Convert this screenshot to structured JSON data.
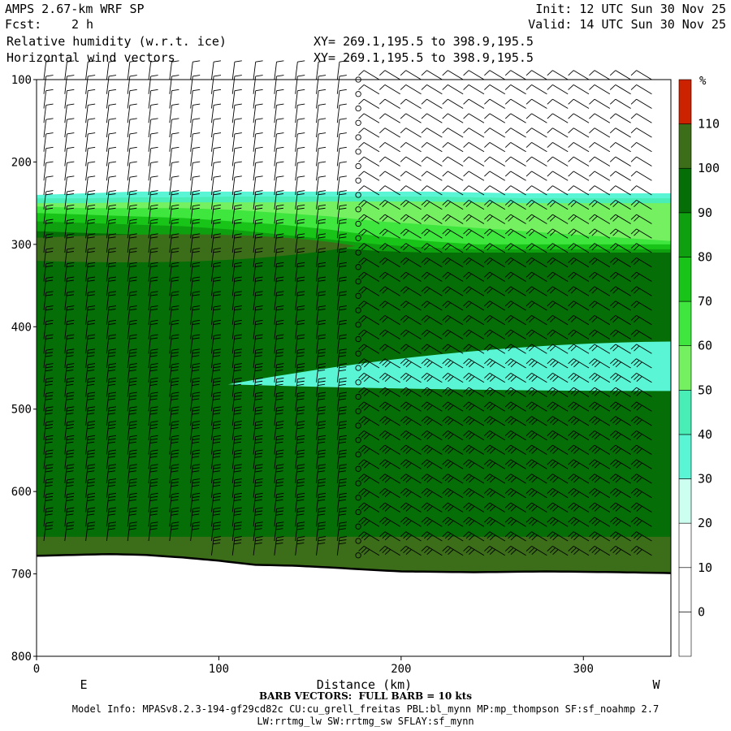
{
  "header": {
    "model": "AMPS 2.67-km WRF SP",
    "init": "Init: 12 UTC Sun 30 Nov 25",
    "fcst_label": "Fcst:",
    "fcst_value": "2 h",
    "valid": "Valid: 14 UTC Sun 30 Nov 25",
    "field1": "Relative humidity (w.r.t. ice)",
    "field2": "Horizontal wind vectors",
    "xy1": "XY= 269.1,195.5 to 398.9,195.5",
    "xy2": "XY= 269.1,195.5 to 398.9,195.5"
  },
  "footer": {
    "barb_note": "BARB VECTORS:  FULL BARB = 10 kts",
    "model_info": "Model Info: MPASv8.2.3-194-gf29cd82c CU:cu_grell_freitas PBL:bl_mynn MP:mp_thompson SF:sf_noahmp 2.7",
    "model_info2": "LW:rrtmg_lw SW:rrtmg_sw SFLAY:sf_mynn"
  },
  "chart_data": {
    "type": "heatmap",
    "title": "Relative humidity (w.r.t. ice)",
    "xlabel": "Distance (km)",
    "ylabel": "",
    "x_ticks": [
      0,
      100,
      200,
      300
    ],
    "y_ticks": [
      100,
      200,
      300,
      400,
      500,
      600,
      700,
      800
    ],
    "xlim": [
      0,
      348
    ],
    "ylim": [
      800,
      100
    ],
    "y_orientation": "pressure decreasing upward",
    "x_end_labels": {
      "left": "E",
      "right": "W"
    },
    "colorbar": {
      "unit": "%",
      "levels": [
        0,
        10,
        20,
        30,
        40,
        50,
        60,
        70,
        80,
        90,
        100,
        110
      ],
      "colors": [
        "#ffffff",
        "#ffffff",
        "#ffffff",
        "#cdfff0",
        "#5af5d5",
        "#48eeb5",
        "#74f060",
        "#3ee63e",
        "#19c419",
        "#0ea00e",
        "#066e06",
        "#3c6d18",
        "#cc2200"
      ]
    },
    "layers": [
      {
        "level": 30,
        "top": [
          240,
          238,
          236,
          236,
          236,
          236,
          236,
          236,
          236,
          237,
          238,
          238,
          238,
          238
        ],
        "bottom": [
          440,
          440,
          442,
          442,
          440,
          438,
          440,
          440,
          440,
          440,
          440,
          440,
          440,
          440
        ]
      },
      {
        "level": 40,
        "top": [
          244,
          244,
          243,
          243,
          242,
          242,
          242,
          242,
          242,
          243,
          244,
          244,
          244,
          244
        ],
        "bottom": [
          600,
          600,
          600,
          600,
          598,
          596,
          596,
          596,
          596,
          594,
          594,
          594,
          594,
          594
        ]
      },
      {
        "level": 50,
        "top": [
          250,
          250,
          249,
          249,
          249,
          249,
          248,
          248,
          248,
          249,
          250,
          250,
          250,
          250
        ],
        "bottom": [
          625,
          624,
          624,
          622,
          620,
          618,
          616,
          614,
          612,
          610,
          610,
          610,
          612,
          614
        ]
      },
      {
        "level": 60,
        "top": [
          254,
          256,
          256,
          256,
          258,
          262,
          266,
          272,
          276,
          280,
          284,
          288,
          292,
          296
        ],
        "bottom": [
          632,
          632,
          632,
          630,
          630,
          628,
          628,
          626,
          626,
          628,
          630,
          632,
          632,
          632
        ]
      },
      {
        "level": 70,
        "top": [
          262,
          264,
          266,
          268,
          272,
          276,
          282,
          290,
          296,
          300,
          300,
          300,
          300,
          300
        ],
        "bottom": [
          638,
          638,
          638,
          638,
          638,
          638,
          638,
          638,
          638,
          638,
          638,
          638,
          638,
          638
        ]
      },
      {
        "level": 80,
        "top": [
          272,
          274,
          276,
          278,
          282,
          288,
          294,
          300,
          304,
          306,
          306,
          306,
          306,
          306
        ],
        "bottom": [
          650,
          650,
          650,
          650,
          650,
          650,
          650,
          650,
          650,
          650,
          650,
          650,
          650,
          650
        ]
      },
      {
        "level": 90,
        "top": [
          284,
          286,
          288,
          292,
          296,
          300,
          304,
          308,
          310,
          310,
          310,
          310,
          310,
          310
        ],
        "bottom": [
          658,
          658,
          658,
          658,
          658,
          658,
          658,
          658,
          658,
          658,
          658,
          658,
          658,
          658
        ]
      }
    ],
    "wind_barbs": "Horizontal wind vectors"
  }
}
